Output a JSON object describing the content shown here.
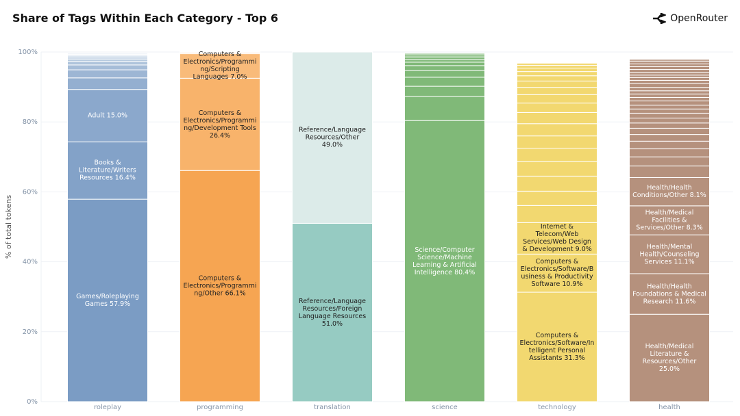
{
  "header": {
    "brand": "OpenRouter"
  },
  "chart_data": {
    "type": "stacked-bar",
    "title": "Share of Tags Within Each Category - Top 6",
    "y_label": "% of total tokens",
    "ylim": [
      0,
      100
    ],
    "yticks": [
      {
        "value": 0,
        "label": "0%"
      },
      {
        "value": 20,
        "label": "20%"
      },
      {
        "value": 40,
        "label": "40%"
      },
      {
        "value": 60,
        "label": "60%"
      },
      {
        "value": 80,
        "label": "80%"
      },
      {
        "value": 100,
        "label": "100%"
      }
    ],
    "grid": true,
    "stacks": [
      {
        "category": "roleplay",
        "color": "#7b9cc4",
        "segments": [
          {
            "name": "Games/Roleplaying Games",
            "value": 57.9,
            "value_label": "57.9%"
          },
          {
            "name": "Books & Literature/Writers Resources",
            "value": 16.4,
            "value_label": "16.4%",
            "color": "#83a2c8"
          },
          {
            "name": "Adult",
            "value": 15.0,
            "value_label": "15.0%",
            "color": "#8ba8cc"
          },
          {
            "name": null,
            "value": 3.3,
            "color": "#94afd0"
          },
          {
            "name": null,
            "value": 2.3,
            "color": "#9db6d4"
          },
          {
            "name": null,
            "value": 1.4,
            "color": "#a6bdd8"
          },
          {
            "name": null,
            "value": 1.0,
            "color": "#afc4dc"
          },
          {
            "name": null,
            "value": 0.7,
            "color": "#b8cbe0"
          },
          {
            "name": null,
            "value": 0.6,
            "color": "#c1d2e4"
          },
          {
            "name": null,
            "value": 0.4,
            "color": "#cad9e8"
          },
          {
            "name": null,
            "value": 0.3,
            "color": "#d3e0ec"
          },
          {
            "name": null,
            "value": 0.3,
            "color": "#dce6f0"
          }
        ]
      },
      {
        "category": "programming",
        "color": "#f6a552",
        "segments": [
          {
            "name": "Computers & Electronics/Programming/Other",
            "value": 66.1,
            "value_label": "66.1%"
          },
          {
            "name": "Computers & Electronics/Programming/Development Tools",
            "value": 26.4,
            "value_label": "26.4%",
            "color": "#f8b36b"
          },
          {
            "name": "Computers & Electronics/Programming/Scripting Languages",
            "value": 7.0,
            "value_label": "7.0%",
            "color": "#f9bb7a"
          },
          {
            "name": null,
            "value": 0.3,
            "color": "#fbcd9c"
          },
          {
            "name": null,
            "value": 0.2,
            "color": "#fcd9b4"
          }
        ]
      },
      {
        "category": "translation",
        "color": "#96cbc2",
        "segments": [
          {
            "name": "Reference/Language Resources/Foreign Language Resources",
            "value": 51.0,
            "value_label": "51.0%"
          },
          {
            "name": "Reference/Language Resources/Other",
            "value": 49.0,
            "value_label": "49.0%",
            "color": "#dcebe9"
          }
        ]
      },
      {
        "category": "science",
        "color": "#80b978",
        "segments": [
          {
            "name": "Science/Computer Science/Machine Learning & Artificial Intelligence",
            "value": 80.4,
            "value_label": "80.4%"
          },
          {
            "name": null,
            "value": 6.9
          },
          {
            "name": null,
            "value": 2.9
          },
          {
            "name": null,
            "value": 2.6
          },
          {
            "name": null,
            "value": 1.9
          },
          {
            "name": null,
            "value": 1.4
          },
          {
            "name": null,
            "value": 1.0
          },
          {
            "name": null,
            "value": 0.7
          },
          {
            "name": null,
            "value": 0.8
          },
          {
            "name": null,
            "value": 0.6
          },
          {
            "name": null,
            "value": 0.4
          }
        ]
      },
      {
        "category": "technology",
        "color": "#f2d870",
        "segments": [
          {
            "name": "Computers & Electronics/Software/Intelligent Personal Assistants",
            "value": 31.3,
            "value_label": "31.3%"
          },
          {
            "name": "Computers & Electronics/Software/Business & Productivity Software",
            "value": 10.9,
            "value_label": "10.9%"
          },
          {
            "name": "Internet & Telecom/Web Services/Web Design & Development",
            "value": 9.0,
            "value_label": "9.0%"
          },
          {
            "name": null,
            "value": 4.9
          },
          {
            "name": null,
            "value": 4.1
          },
          {
            "name": null,
            "value": 4.3
          },
          {
            "name": null,
            "value": 4.1
          },
          {
            "name": null,
            "value": 3.9
          },
          {
            "name": null,
            "value": 3.5
          },
          {
            "name": null,
            "value": 3.5
          },
          {
            "name": null,
            "value": 3.2
          },
          {
            "name": null,
            "value": 2.7
          },
          {
            "name": null,
            "value": 2.4
          },
          {
            "name": null,
            "value": 2.1
          },
          {
            "name": null,
            "value": 1.8
          },
          {
            "name": null,
            "value": 1.5
          },
          {
            "name": null,
            "value": 1.2
          },
          {
            "name": null,
            "value": 1.0
          },
          {
            "name": null,
            "value": 0.8
          },
          {
            "name": null,
            "value": 0.6
          }
        ]
      },
      {
        "category": "health",
        "color": "#b5917d",
        "segments": [
          {
            "name": "Health/Medical Literature & Resources/Other",
            "value": 25.0,
            "value_label": "25.0%"
          },
          {
            "name": "Health/Health Foundations & Medical Research",
            "value": 11.6,
            "value_label": "11.6%"
          },
          {
            "name": "Health/Mental Health/Counseling Services",
            "value": 11.1,
            "value_label": "11.1%"
          },
          {
            "name": "Health/Medical Facilities & Services/Other",
            "value": 8.3,
            "value_label": "8.3%"
          },
          {
            "name": "Health/Health Conditions/Other",
            "value": 8.1,
            "value_label": "8.1%"
          },
          {
            "name": null,
            "value": 3.3
          },
          {
            "name": null,
            "value": 2.6
          },
          {
            "name": null,
            "value": 2.3
          },
          {
            "name": null,
            "value": 2.2
          },
          {
            "name": null,
            "value": 1.9
          },
          {
            "name": null,
            "value": 1.8
          },
          {
            "name": null,
            "value": 1.5
          },
          {
            "name": null,
            "value": 1.4
          },
          {
            "name": null,
            "value": 1.4
          },
          {
            "name": null,
            "value": 1.2
          },
          {
            "name": null,
            "value": 1.1
          },
          {
            "name": null,
            "value": 1.2
          },
          {
            "name": null,
            "value": 1.0
          },
          {
            "name": null,
            "value": 1.0
          },
          {
            "name": null,
            "value": 0.9
          },
          {
            "name": null,
            "value": 1.0
          },
          {
            "name": null,
            "value": 1.0
          },
          {
            "name": null,
            "value": 1.0
          },
          {
            "name": null,
            "value": 0.8
          },
          {
            "name": null,
            "value": 0.7
          },
          {
            "name": null,
            "value": 0.8
          },
          {
            "name": null,
            "value": 0.8
          },
          {
            "name": null,
            "value": 0.8
          },
          {
            "name": null,
            "value": 0.8
          },
          {
            "name": null,
            "value": 0.8
          },
          {
            "name": null,
            "value": 0.5
          }
        ]
      }
    ]
  }
}
